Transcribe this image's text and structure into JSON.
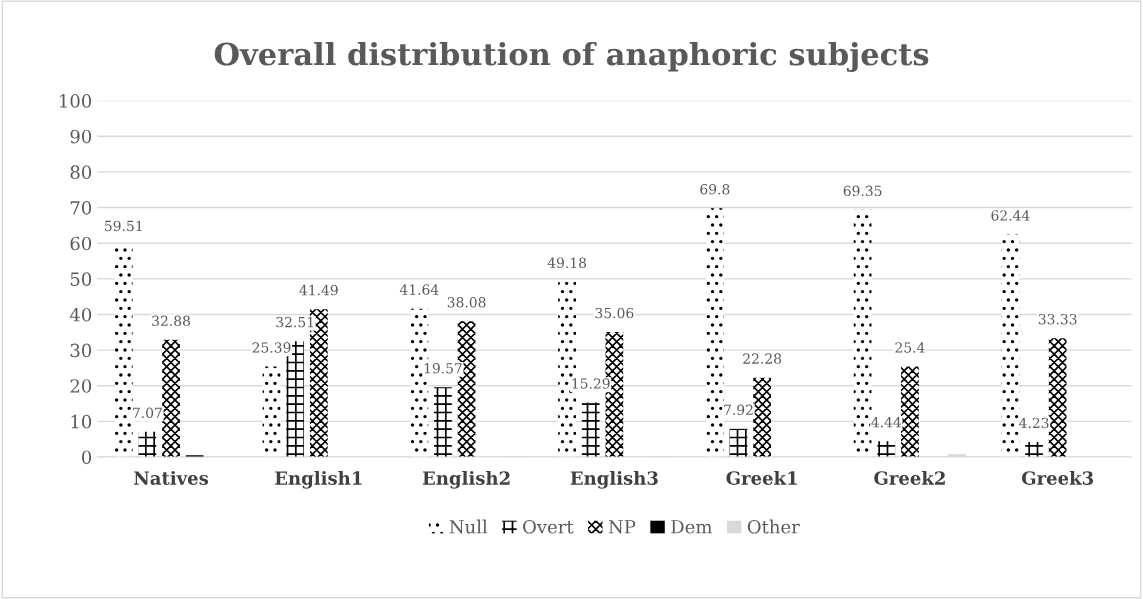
{
  "chart_data": {
    "type": "bar",
    "title": "Overall distribution of anaphoric subjects",
    "categories": [
      "Natives",
      "English1",
      "English2",
      "English3",
      "Greek1",
      "Greek2",
      "Greek3"
    ],
    "series": [
      {
        "name": "Null",
        "color": "#000000",
        "values": [
          59.51,
          25.39,
          41.64,
          49.18,
          69.8,
          69.35,
          62.44
        ],
        "value_labels": [
          "59.51",
          "25.39",
          "41.64",
          "49.18",
          "69.8",
          "69.35",
          "62.44"
        ]
      },
      {
        "name": "Overt",
        "color": "#000000",
        "values": [
          7.07,
          32.51,
          19.57,
          15.29,
          7.92,
          4.44,
          4.23
        ],
        "value_labels": [
          "7.07",
          "32.51",
          "19.57",
          "15.29",
          "7.92",
          "4.44",
          "4.23"
        ]
      },
      {
        "name": "NP",
        "color": "#000000",
        "values": [
          32.88,
          41.49,
          38.08,
          35.06,
          22.28,
          25.4,
          33.33
        ],
        "value_labels": [
          "32.88",
          "41.49",
          "38.08",
          "35.06",
          "22.28",
          "25.4",
          "33.33"
        ]
      },
      {
        "name": "Dem",
        "color": "#000000",
        "values": [
          0.5,
          0,
          null,
          0,
          0,
          0,
          0
        ]
      },
      {
        "name": "Other",
        "color": "#d9d9d9",
        "values": [
          0,
          null,
          0.3,
          0.2,
          0,
          0.8,
          0
        ]
      }
    ],
    "ylim": [
      0,
      100
    ],
    "yticks": [
      0,
      10,
      20,
      30,
      40,
      50,
      60,
      70,
      80,
      90,
      100
    ],
    "grid": "y",
    "legend": "bottom"
  }
}
